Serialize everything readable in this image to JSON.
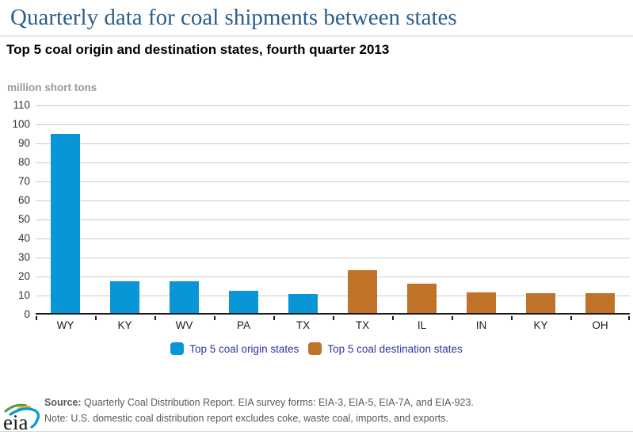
{
  "header": {
    "title": "Quarterly data for coal shipments between states",
    "subtitle": "Top 5 coal origin and destination states, fourth quarter 2013"
  },
  "chart_data": {
    "type": "bar",
    "title": "Top 5 coal origin and destination states, fourth quarter 2013",
    "ylabel": "million short tons",
    "xlabel": "",
    "categories": [
      "WY",
      "KY",
      "WV",
      "PA",
      "TX",
      "TX",
      "IL",
      "IN",
      "KY",
      "OH"
    ],
    "series": [
      {
        "name": "Top 5 coal origin states",
        "color": "#0996D6",
        "values": [
          94,
          16.5,
          16.5,
          11.5,
          10.2,
          null,
          null,
          null,
          null,
          null
        ]
      },
      {
        "name": "Top 5 coal destination states",
        "color": "#BF7328",
        "values": [
          null,
          null,
          null,
          null,
          null,
          22.7,
          15.5,
          11,
          10.3,
          10.3
        ]
      }
    ],
    "ylim": [
      0,
      110
    ],
    "ytick_step": 10,
    "grid": "horizontal",
    "legend_position": "bottom"
  },
  "footer": {
    "source_label": "Source:",
    "source_text": "Quarterly Coal Distribution Report. EIA survey forms: EIA-3, EIA-5, EIA-7A, and EIA-923.",
    "note_text": "Note: U.S. domestic coal distribution report excludes coke, waste coal, imports, and exports.",
    "logo_text": "eia"
  },
  "colors": {
    "title": "#2A5E8C",
    "origin_bar": "#0996D6",
    "destination_bar": "#BF7328",
    "legend_text": "#3333A0",
    "units_label": "#999999",
    "gridline": "#cccccc",
    "axis": "#1a1a1a",
    "footer_text": "#595959"
  }
}
